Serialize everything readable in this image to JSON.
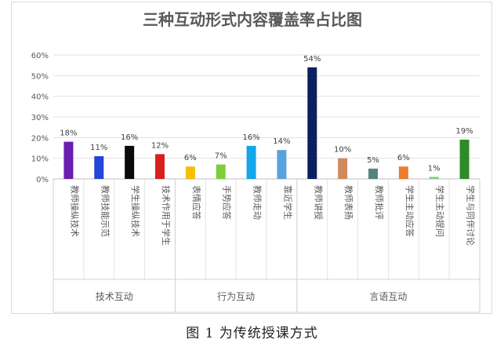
{
  "chart_data": {
    "type": "bar",
    "title": "三种互动形式内容覆盖率占比图",
    "xlabel": "",
    "ylabel": "",
    "ylim": [
      0,
      60
    ],
    "yticks": [
      0,
      10,
      20,
      30,
      40,
      50,
      60
    ],
    "ytick_labels": [
      "0%",
      "10%",
      "20%",
      "30%",
      "40%",
      "50%",
      "60%"
    ],
    "grid": true,
    "legend": "none",
    "groups": [
      {
        "name": "技术互动",
        "count": 4
      },
      {
        "name": "行为互动",
        "count": 4
      },
      {
        "name": "言语互动",
        "count": 6
      }
    ],
    "categories": [
      "教师操纵技术",
      "教师技能示范",
      "学生操纵技术",
      "技术作用于学生",
      "表情应答",
      "手势应答",
      "教师走动",
      "靠近学生",
      "教师讲授",
      "教师表扬",
      "教师批评",
      "学生主动应答",
      "学生主动提问",
      "学生与同伴讨论"
    ],
    "values": [
      18,
      11,
      16,
      12,
      6,
      7,
      16,
      14,
      54,
      10,
      5,
      6,
      1,
      19
    ],
    "value_labels": [
      "18%",
      "11%",
      "16%",
      "12%",
      "6%",
      "7%",
      "16%",
      "14%",
      "54%",
      "10%",
      "5%",
      "6%",
      "1%",
      "19%"
    ],
    "colors": [
      "#6a1fb0",
      "#2346d6",
      "#0a0a0a",
      "#d9201f",
      "#f5c000",
      "#7fce3a",
      "#12a6ea",
      "#5aa2dc",
      "#0c1f5e",
      "#cf8a5e",
      "#57837f",
      "#ef7d2e",
      "#7ecf7a",
      "#2f8a2a"
    ]
  },
  "caption": "图 1 为传统授课方式"
}
